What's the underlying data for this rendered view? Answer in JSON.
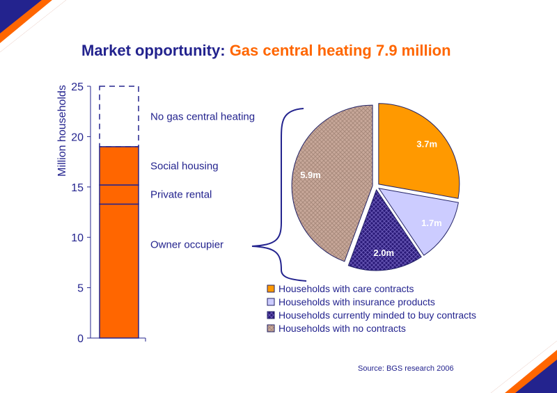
{
  "title": {
    "prefix": "Market opportunity:",
    "highlight": "Gas central heating 7.9 million"
  },
  "source": "Source: BGS research 2006",
  "colors": {
    "navy": "#23238e",
    "orange": "#ff6600",
    "pie_care": "#ff9900",
    "pie_insurance": "#ccccff",
    "pie_minded": "#2a1a78",
    "pie_none": "#c8a89a"
  },
  "chart_data": [
    {
      "type": "bar",
      "subtype": "stacked-column",
      "ylabel": "Million households",
      "ylim": [
        0,
        25
      ],
      "yticks": [
        0,
        5,
        10,
        15,
        20,
        25
      ],
      "segments": [
        {
          "name": "Owner occupier",
          "from": 0,
          "to": 13.3,
          "style": "filled"
        },
        {
          "name": "Private rental",
          "from": 13.3,
          "to": 15.2,
          "style": "filled"
        },
        {
          "name": "Social housing",
          "from": 15.2,
          "to": 19.0,
          "style": "filled"
        },
        {
          "name": "No gas central heating",
          "from": 19.0,
          "to": 25.0,
          "style": "dashed-outline"
        }
      ]
    },
    {
      "type": "pie",
      "slices": [
        {
          "name": "Households with care contracts",
          "value": 3.7,
          "label": "3.7m"
        },
        {
          "name": "Households with insurance products",
          "value": 1.7,
          "label": "1.7m"
        },
        {
          "name": "Households currently minded to buy contracts",
          "value": 2.0,
          "label": "2.0m"
        },
        {
          "name": "Households with no contracts",
          "value": 5.9,
          "label": "5.9m"
        }
      ],
      "legend_position": "bottom"
    }
  ]
}
